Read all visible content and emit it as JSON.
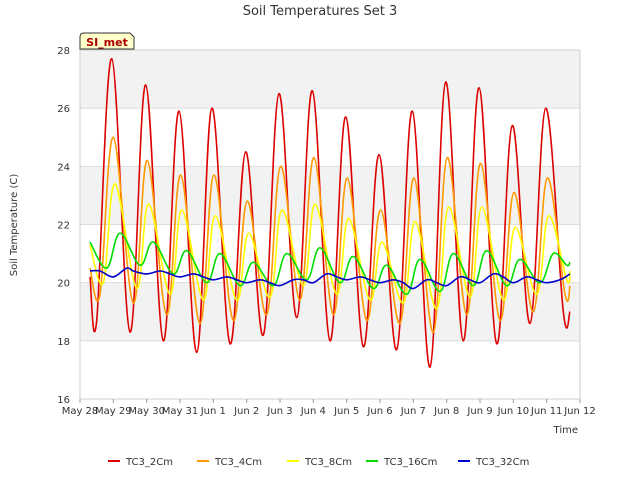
{
  "chart_data": {
    "type": "line",
    "title": "Soil Temperatures Set 3",
    "xlabel": "Time",
    "ylabel": "Soil Temperature (C)",
    "badge": "SI_met",
    "ylim": [
      16,
      28
    ],
    "yticks": [
      16,
      18,
      20,
      22,
      24,
      26,
      28
    ],
    "xlim_days": [
      0,
      15
    ],
    "xticks": [
      "May 28",
      "May 29",
      "May 30",
      "May 31",
      "Jun 1",
      "Jun 2",
      "Jun 3",
      "Jun 4",
      "Jun 5",
      "Jun 6",
      "Jun 7",
      "Jun 8",
      "Jun 9",
      "Jun 10",
      "Jun 11",
      "Jun 12"
    ],
    "grid": true,
    "legend_position": "bottom",
    "daily_peak_x_offset": 0.65,
    "series": [
      {
        "name": "TC3_2Cm",
        "color": "#dd0000",
        "x": [
          0.3,
          0.5,
          0.95,
          1.5,
          1.97,
          2.5,
          2.97,
          3.5,
          3.96,
          4.5,
          4.97,
          5.5,
          5.97,
          6.5,
          6.97,
          7.5,
          7.97,
          8.5,
          8.97,
          9.5,
          9.97,
          10.5,
          10.97,
          11.5,
          11.97,
          12.5,
          12.97,
          13.5,
          13.97,
          14.5,
          14.7
        ],
        "y": [
          20.2,
          18.7,
          27.7,
          18.3,
          26.8,
          18.0,
          25.9,
          17.6,
          26.0,
          17.9,
          24.5,
          18.2,
          26.5,
          18.8,
          26.6,
          18.0,
          25.7,
          17.8,
          24.4,
          17.7,
          25.9,
          17.1,
          26.9,
          18.0,
          26.7,
          17.9,
          25.4,
          18.6,
          26.0,
          19.0,
          19.0
        ]
      },
      {
        "name": "TC3_4Cm",
        "color": "#ff9900",
        "x": [
          0.3,
          0.6,
          1.0,
          1.6,
          2.02,
          2.6,
          3.02,
          3.6,
          4.02,
          4.6,
          5.02,
          5.6,
          6.02,
          6.6,
          7.02,
          7.6,
          8.02,
          8.6,
          9.02,
          9.6,
          10.02,
          10.6,
          11.02,
          11.6,
          12.02,
          12.6,
          13.02,
          13.6,
          14.02,
          14.55,
          14.7
        ],
        "y": [
          20.5,
          19.6,
          25.0,
          19.3,
          24.2,
          18.9,
          23.7,
          18.6,
          23.7,
          18.7,
          22.8,
          18.9,
          24.0,
          19.4,
          24.3,
          18.9,
          23.6,
          18.7,
          22.5,
          18.6,
          23.6,
          18.3,
          24.3,
          18.9,
          24.1,
          18.7,
          23.1,
          19.0,
          23.6,
          19.6,
          19.9
        ]
      },
      {
        "name": "TC3_8Cm",
        "color": "#ffff00",
        "x": [
          0.3,
          0.7,
          1.05,
          1.7,
          2.06,
          2.7,
          3.06,
          3.7,
          4.06,
          4.7,
          5.06,
          5.7,
          6.06,
          6.7,
          7.06,
          7.7,
          8.06,
          8.7,
          9.06,
          9.7,
          10.06,
          10.7,
          11.06,
          11.7,
          12.06,
          12.7,
          13.06,
          13.7,
          14.06,
          14.6,
          14.7
        ],
        "y": [
          21.3,
          20.0,
          23.4,
          19.8,
          22.7,
          19.6,
          22.5,
          19.4,
          22.3,
          19.4,
          21.7,
          19.5,
          22.5,
          19.9,
          22.7,
          19.6,
          22.2,
          19.4,
          21.4,
          19.3,
          22.1,
          19.1,
          22.6,
          19.5,
          22.6,
          19.4,
          21.9,
          19.6,
          22.3,
          20.1,
          20.4
        ]
      },
      {
        "name": "TC3_16Cm",
        "color": "#00dd00",
        "x": [
          0.3,
          0.8,
          1.2,
          1.8,
          2.2,
          2.8,
          3.2,
          3.8,
          4.2,
          4.8,
          5.2,
          5.8,
          6.2,
          6.8,
          7.2,
          7.8,
          8.2,
          8.8,
          9.2,
          9.8,
          10.2,
          10.8,
          11.2,
          11.8,
          12.2,
          12.8,
          13.2,
          13.8,
          14.2,
          14.6,
          14.7
        ],
        "y": [
          21.4,
          20.5,
          21.7,
          20.6,
          21.4,
          20.3,
          21.1,
          20.0,
          21.0,
          19.9,
          20.7,
          19.9,
          21.0,
          20.1,
          21.2,
          20.0,
          20.9,
          19.8,
          20.6,
          19.6,
          20.8,
          19.7,
          21.0,
          19.9,
          21.1,
          19.9,
          20.8,
          20.0,
          21.0,
          20.6,
          20.7
        ]
      },
      {
        "name": "TC3_32Cm",
        "color": "#0000cc",
        "x": [
          0.3,
          0.6,
          1.0,
          1.4,
          1.6,
          2.0,
          2.4,
          2.7,
          3.0,
          3.4,
          3.7,
          4.0,
          4.4,
          4.7,
          5.0,
          5.4,
          5.7,
          6.0,
          6.4,
          6.7,
          7.0,
          7.4,
          7.7,
          8.0,
          8.4,
          8.7,
          9.0,
          9.4,
          9.7,
          10.0,
          10.4,
          10.7,
          11.0,
          11.4,
          11.7,
          12.0,
          12.4,
          12.7,
          13.0,
          13.4,
          13.7,
          14.0,
          14.4,
          14.7
        ],
        "y": [
          20.4,
          20.4,
          20.2,
          20.5,
          20.4,
          20.3,
          20.4,
          20.3,
          20.2,
          20.3,
          20.2,
          20.1,
          20.2,
          20.1,
          20.0,
          20.1,
          20.0,
          19.9,
          20.1,
          20.1,
          20.0,
          20.3,
          20.2,
          20.1,
          20.2,
          20.1,
          20.0,
          20.1,
          20.0,
          19.8,
          20.1,
          20.0,
          19.9,
          20.2,
          20.1,
          20.0,
          20.3,
          20.2,
          20.0,
          20.2,
          20.1,
          20.0,
          20.1,
          20.3
        ]
      }
    ]
  }
}
